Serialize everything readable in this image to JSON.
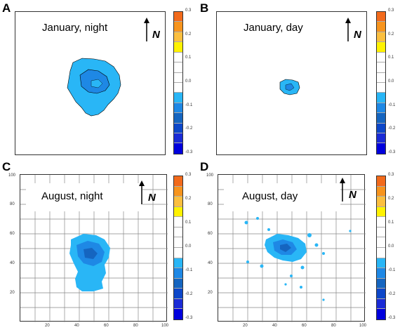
{
  "panels": [
    {
      "letter": "A",
      "title": "January, night",
      "north": "N"
    },
    {
      "letter": "B",
      "title": "January, day",
      "north": "N"
    },
    {
      "letter": "C",
      "title": "August, night",
      "north": "N"
    },
    {
      "letter": "D",
      "title": "August, day",
      "north": "N"
    }
  ],
  "scale": {
    "labels": [
      "0.3",
      "0.2",
      "0.1",
      "0.0",
      "-0.1",
      "-0.2",
      "-0.3"
    ],
    "colors": [
      "#f26a1b",
      "#f7941d",
      "#fbbf3f",
      "#fff200",
      "#ffffff",
      "#ffffff",
      "#ffffff",
      "#ffffff",
      "#29b6f6",
      "#1e88e5",
      "#1565c0",
      "#0d47c9",
      "#1a2bd6",
      "#0000dd"
    ]
  },
  "axes": {
    "y_ticks": [
      "100",
      "80",
      "60",
      "40",
      "20"
    ],
    "x_ticks": [
      "20",
      "40",
      "60",
      "80",
      "100"
    ]
  }
}
